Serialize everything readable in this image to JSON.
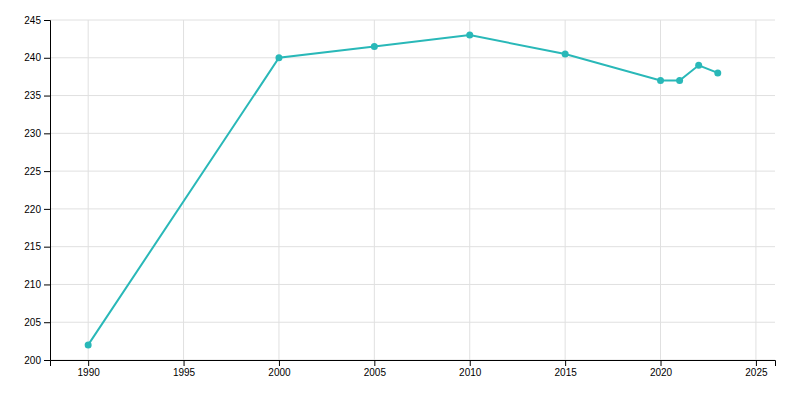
{
  "chart_data": {
    "type": "line",
    "x": [
      1990,
      2000,
      2005,
      2010,
      2015,
      2020,
      2021,
      2022,
      2023
    ],
    "values": [
      202,
      240,
      241.5,
      243,
      240.5,
      237,
      237,
      239,
      238
    ],
    "color": "#29b8b8",
    "marker": "circle",
    "xlim": [
      1988,
      2026
    ],
    "xticks": [
      1990,
      1995,
      2000,
      2005,
      2010,
      2015,
      2020,
      2025
    ],
    "ylim": [
      200,
      245
    ],
    "yticks": [
      200,
      205,
      210,
      215,
      220,
      225,
      230,
      235,
      240,
      245
    ],
    "grid": true
  }
}
